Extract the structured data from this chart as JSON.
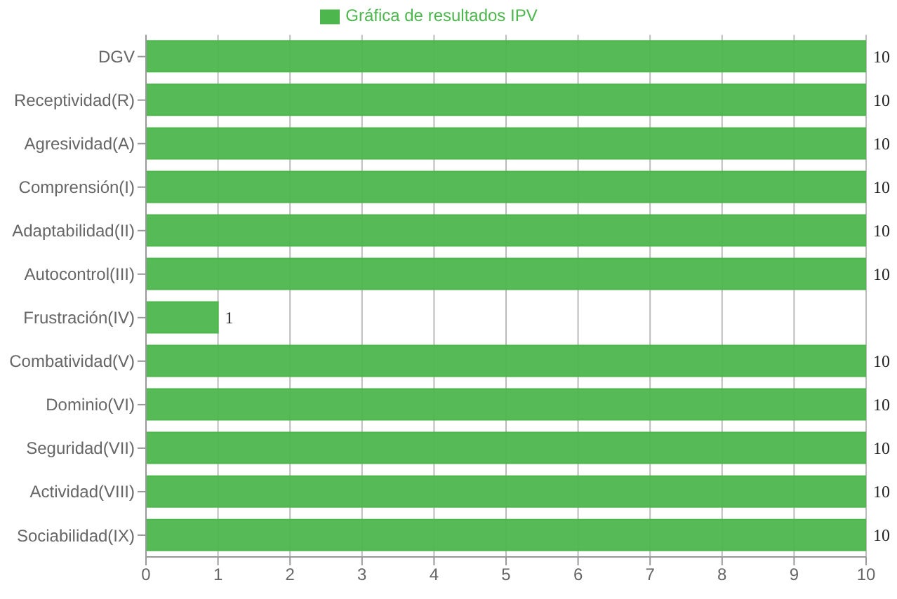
{
  "chart_data": {
    "type": "bar",
    "orientation": "horizontal",
    "categories": [
      "DGV",
      "Receptividad(R)",
      "Agresividad(A)",
      "Comprensión(I)",
      "Adaptabilidad(II)",
      "Autocontrol(III)",
      "Frustración(IV)",
      "Combatividad(V)",
      "Dominio(VI)",
      "Seguridad(VII)",
      "Actividad(VIII)",
      "Sociabilidad(IX)"
    ],
    "series": [
      {
        "name": "Gráfica de resultados IPV",
        "color": "#4db64d",
        "values": [
          10,
          10,
          10,
          10,
          10,
          10,
          1,
          10,
          10,
          10,
          10,
          10
        ]
      }
    ],
    "xlim": [
      0,
      10
    ],
    "xticks": [
      0,
      1,
      2,
      3,
      4,
      5,
      6,
      7,
      8,
      9,
      10
    ],
    "grid": "x",
    "legend": "top",
    "data_labels": true
  }
}
